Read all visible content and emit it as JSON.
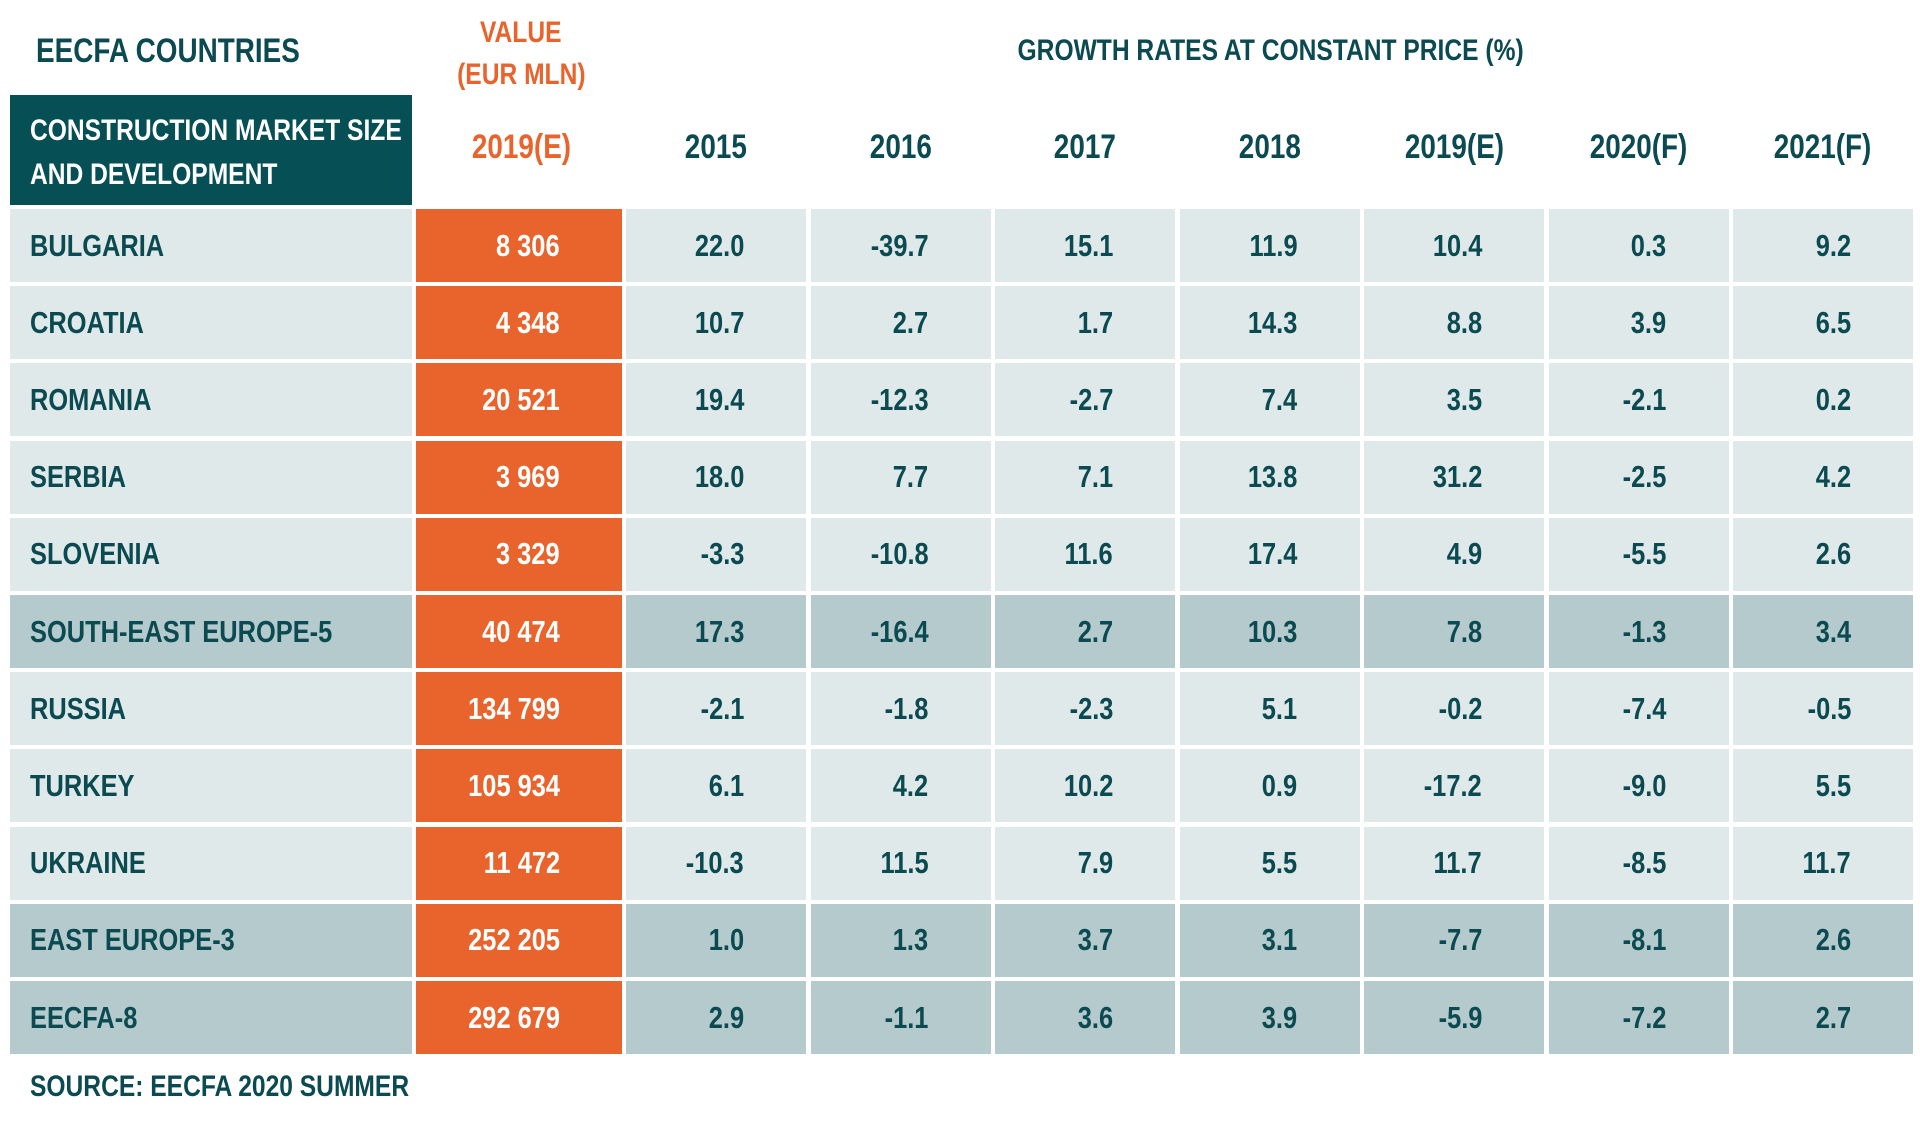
{
  "title": "EECFA COUNTRIES",
  "value_header": [
    "VALUE",
    "(EUR MLN)"
  ],
  "growth_header": "GROWTH RATES AT CONSTANT PRICE (%)",
  "corner_label": [
    "CONSTRUCTION MARKET SIZE",
    "AND DEVELOPMENT"
  ],
  "value_year": "2019(E)",
  "years": [
    "2015",
    "2016",
    "2017",
    "2018",
    "2019(E)",
    "2020(F)",
    "2021(F)"
  ],
  "source": "SOURCE: EECFA 2020 SUMMER",
  "colors": {
    "teal_dark": "#054f55",
    "text": "#0b4a50",
    "orange": "#e8642c",
    "row_light": "#dfe9ea",
    "row_aggregate": "#b4cacd"
  },
  "chart_data": {
    "type": "table",
    "columns": [
      "EECFA COUNTRIES",
      "2019(E)",
      "2015",
      "2016",
      "2017",
      "2018",
      "2019(E)",
      "2020(F)",
      "2021(F)"
    ],
    "rows": [
      {
        "name": "BULGARIA",
        "value": "8 306",
        "growth": [
          "22.0",
          "-39.7",
          "15.1",
          "11.9",
          "10.4",
          "0.3",
          "9.2"
        ],
        "aggregate": false
      },
      {
        "name": "CROATIA",
        "value": "4 348",
        "growth": [
          "10.7",
          "2.7",
          "1.7",
          "14.3",
          "8.8",
          "3.9",
          "6.5"
        ],
        "aggregate": false
      },
      {
        "name": "ROMANIA",
        "value": "20 521",
        "growth": [
          "19.4",
          "-12.3",
          "-2.7",
          "7.4",
          "3.5",
          "-2.1",
          "0.2"
        ],
        "aggregate": false
      },
      {
        "name": "SERBIA",
        "value": "3 969",
        "growth": [
          "18.0",
          "7.7",
          "7.1",
          "13.8",
          "31.2",
          "-2.5",
          "4.2"
        ],
        "aggregate": false
      },
      {
        "name": "SLOVENIA",
        "value": "3 329",
        "growth": [
          "-3.3",
          "-10.8",
          "11.6",
          "17.4",
          "4.9",
          "-5.5",
          "2.6"
        ],
        "aggregate": false
      },
      {
        "name": "SOUTH-EAST EUROPE-5",
        "value": "40 474",
        "growth": [
          "17.3",
          "-16.4",
          "2.7",
          "10.3",
          "7.8",
          "-1.3",
          "3.4"
        ],
        "aggregate": true
      },
      {
        "name": "RUSSIA",
        "value": "134 799",
        "growth": [
          "-2.1",
          "-1.8",
          "-2.3",
          "5.1",
          "-0.2",
          "-7.4",
          "-0.5"
        ],
        "aggregate": false
      },
      {
        "name": "TURKEY",
        "value": "105 934",
        "growth": [
          "6.1",
          "4.2",
          "10.2",
          "0.9",
          "-17.2",
          "-9.0",
          "5.5"
        ],
        "aggregate": false
      },
      {
        "name": "UKRAINE",
        "value": "11 472",
        "growth": [
          "-10.3",
          "11.5",
          "7.9",
          "5.5",
          "11.7",
          "-8.5",
          "11.7"
        ],
        "aggregate": false
      },
      {
        "name": "EAST EUROPE-3",
        "value": "252 205",
        "growth": [
          "1.0",
          "1.3",
          "3.7",
          "3.1",
          "-7.7",
          "-8.1",
          "2.6"
        ],
        "aggregate": true
      },
      {
        "name": "EECFA-8",
        "value": "292 679",
        "growth": [
          "2.9",
          "-1.1",
          "3.6",
          "3.9",
          "-5.9",
          "-7.2",
          "2.7"
        ],
        "aggregate": true
      }
    ]
  }
}
